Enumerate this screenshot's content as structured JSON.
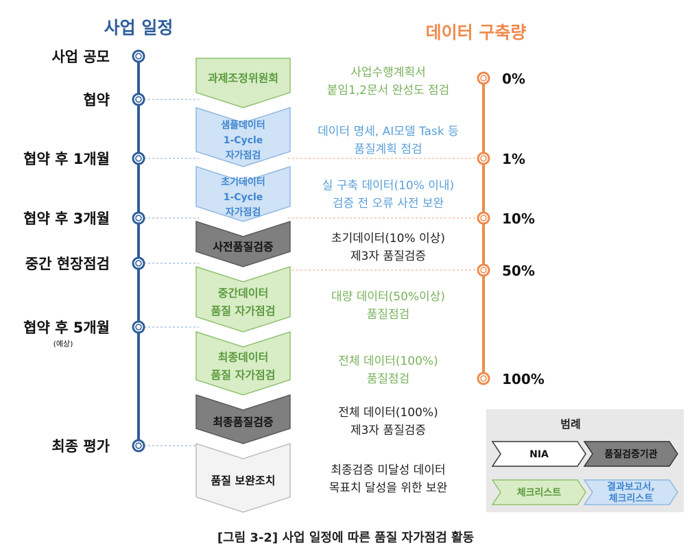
{
  "header": {
    "schedule_title": "사업 일정",
    "data_title": "데이터 구축량"
  },
  "milestones": [
    {
      "label": "사업 공모",
      "note": ""
    },
    {
      "label": "협약",
      "note": ""
    },
    {
      "label": "협약 후 1개월",
      "note": ""
    },
    {
      "label": "협약 후 3개월",
      "note": ""
    },
    {
      "label": "중간 현장점검",
      "note": ""
    },
    {
      "label": "협약 후 5개월",
      "note": "(예상)"
    },
    {
      "label": "최종 평가",
      "note": ""
    }
  ],
  "stages": [
    {
      "lines": [
        "과제조정위원회"
      ],
      "type": "green"
    },
    {
      "lines": [
        "샘플데이터",
        "1-Cycle",
        "자가점검"
      ],
      "type": "blue"
    },
    {
      "lines": [
        "초기데이터",
        "1-Cycle",
        "자가점검"
      ],
      "type": "blue"
    },
    {
      "lines": [
        "사전품질검증"
      ],
      "type": "dark"
    },
    {
      "lines": [
        "중간데이터",
        "품질 자가점검"
      ],
      "type": "green"
    },
    {
      "lines": [
        "최종데이터",
        "품질 자가점검"
      ],
      "type": "green"
    },
    {
      "lines": [
        "최종품질검증"
      ],
      "type": "dark"
    },
    {
      "lines": [
        "품질 보완조치"
      ],
      "type": "white"
    }
  ],
  "descriptions": [
    {
      "lines": [
        "사업수행계획서",
        "붙임1,2문서 완성도 점검"
      ],
      "color": "#79b15c"
    },
    {
      "lines": [
        "데이터 명세, AI모델 Task 등",
        "품질계획 점검"
      ],
      "color": "#5b9fd8"
    },
    {
      "lines": [
        "실 구축 데이터(10% 이내)",
        "검증 전 오류 사전 보완"
      ],
      "color": "#5b9fd8"
    },
    {
      "lines": [
        "초기데이터(10% 이상)",
        "제3자 품질검증"
      ],
      "color": "#222222"
    },
    {
      "lines": [
        "대량 데이터(50%이상)",
        "품질점검"
      ],
      "color": "#79b15c"
    },
    {
      "lines": [
        "전체 데이터(100%)",
        "품질점검"
      ],
      "color": "#79b15c"
    },
    {
      "lines": [
        "전체 데이터(100%)",
        "제3자 품질검증"
      ],
      "color": "#222222"
    },
    {
      "lines": [
        "최종검증 미달성 데이터",
        "목표치 달성을 위한 보완"
      ],
      "color": "#222222"
    }
  ],
  "data_amounts": [
    "0%",
    "1%",
    "10%",
    "50%",
    "100%"
  ],
  "legend": {
    "title": "범례",
    "items": [
      {
        "label": "NIA",
        "style": "white"
      },
      {
        "label": "품질검증기관",
        "style": "dark"
      },
      {
        "label": "체크리스트",
        "style": "green"
      },
      {
        "label": "결과보고서,\n체크리스트",
        "style": "blue"
      }
    ]
  },
  "caption": "[그림 3-2] 사업 일정에 따른 품질 자가점검 활동",
  "colors": {
    "timeline": "#2e5d9a",
    "data_line": "#ee8a4c",
    "green_fill": "#d8ecc6",
    "green_stroke": "#8ec16c",
    "green_text": "#5a9a3c",
    "blue_fill": "#cfe2f6",
    "blue_stroke": "#8fb8e2",
    "blue_text": "#3f86cf",
    "dark_fill": "#7f7f7f",
    "dark_stroke": "#5a5a5a",
    "white_fill": "#f3f3f3",
    "white_stroke": "#bdbdbd"
  }
}
